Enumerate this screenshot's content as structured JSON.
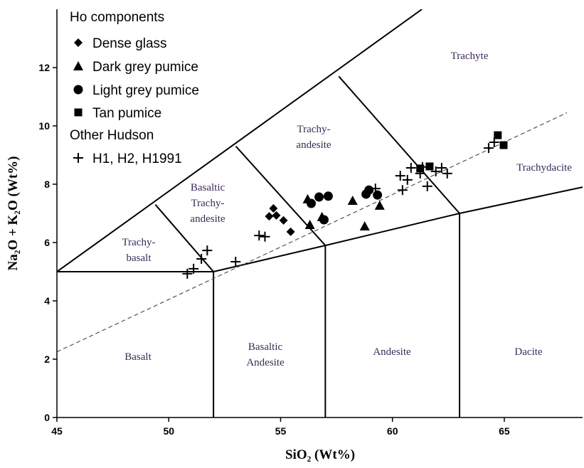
{
  "chart_data": {
    "type": "scatter",
    "xlabel": "SiO₂ (Wt%)",
    "ylabel": "Na₂O + K₂O (Wt%)",
    "xlim": [
      45,
      68.5
    ],
    "ylim": [
      0,
      14
    ],
    "xticks": [
      45,
      50,
      55,
      60,
      65
    ],
    "yticks": [
      0,
      2,
      4,
      6,
      8,
      10,
      12
    ],
    "legend_headings": [
      "Ho components",
      "Other Hudson"
    ],
    "series": [
      {
        "name": "Dense glass",
        "marker": "diamond",
        "color": "#000000",
        "group": 0,
        "x": [
          54.68,
          54.49,
          54.81,
          55.13,
          55.45
        ],
        "values": [
          7.17,
          6.9,
          6.93,
          6.76,
          6.37
        ]
      },
      {
        "name": "Dark grey pumice",
        "marker": "triangle",
        "color": "#000000",
        "group": 0,
        "x": [
          56.21,
          56.31,
          56.85,
          58.22,
          58.76,
          59.43
        ],
        "values": [
          7.49,
          6.61,
          6.88,
          7.44,
          6.56,
          7.27
        ]
      },
      {
        "name": "Light grey pumice",
        "marker": "circle",
        "color": "#000000",
        "group": 0,
        "x": [
          56.37,
          56.72,
          57.13,
          56.94,
          58.82,
          58.95,
          59.33
        ],
        "values": [
          7.34,
          7.56,
          7.59,
          6.78,
          7.66,
          7.8,
          7.63
        ]
      },
      {
        "name": "Tan pumice",
        "marker": "square",
        "color": "#000000",
        "group": 0,
        "x": [
          64.71,
          64.97,
          61.24,
          61.66
        ],
        "values": [
          9.68,
          9.34,
          8.54,
          8.61
        ]
      },
      {
        "name": "H1, H2, H1991",
        "marker": "plus",
        "color": "#000000",
        "group": 1,
        "x": [
          50.83,
          51.11,
          51.46,
          51.72,
          52.99,
          54.04,
          54.3,
          59.24,
          60.35,
          60.45,
          60.67,
          60.83,
          61.24,
          61.34,
          61.56,
          61.94,
          62.2,
          62.45,
          64.3,
          64.55
        ],
        "values": [
          4.93,
          5.1,
          5.44,
          5.73,
          5.34,
          6.24,
          6.2,
          7.85,
          8.29,
          7.8,
          8.15,
          8.56,
          8.37,
          8.59,
          7.93,
          8.44,
          8.56,
          8.37,
          9.24,
          9.44
        ]
      }
    ],
    "field_lines": [
      {
        "x": [
          45,
          61.32
        ],
        "y": [
          5,
          14
        ],
        "style": "solid"
      },
      {
        "x": [
          45,
          52
        ],
        "y": [
          5,
          5
        ],
        "style": "solid"
      },
      {
        "x": [
          52,
          49.4
        ],
        "y": [
          5,
          7.3
        ],
        "style": "solid"
      },
      {
        "x": [
          52,
          57,
          63,
          68.5
        ],
        "y": [
          5,
          5.9,
          7,
          7.9
        ],
        "style": "solid"
      },
      {
        "x": [
          57,
          53
        ],
        "y": [
          5.9,
          9.3
        ],
        "style": "solid"
      },
      {
        "x": [
          63,
          57.6
        ],
        "y": [
          7,
          11.7
        ],
        "style": "solid"
      },
      {
        "x": [
          52,
          52
        ],
        "y": [
          0,
          5
        ],
        "style": "solid"
      },
      {
        "x": [
          57,
          57
        ],
        "y": [
          0,
          5.9
        ],
        "style": "solid"
      },
      {
        "x": [
          63,
          63
        ],
        "y": [
          0,
          7
        ],
        "style": "solid"
      },
      {
        "x": [
          45,
          67.8
        ],
        "y": [
          2.25,
          10.45
        ],
        "style": "dashed"
      }
    ],
    "field_names": [
      [
        "Trachyte"
      ],
      [
        "Trachy-",
        "andesite"
      ],
      [
        "Basaltic",
        "Trachy-",
        "andesite"
      ],
      [
        "Trachy-",
        "basalt"
      ],
      [
        "Trachydacite"
      ],
      [
        "Basalt"
      ],
      [
        "Basaltic",
        "Andesite"
      ],
      [
        "Andesite"
      ],
      [
        "Dacite"
      ]
    ]
  }
}
